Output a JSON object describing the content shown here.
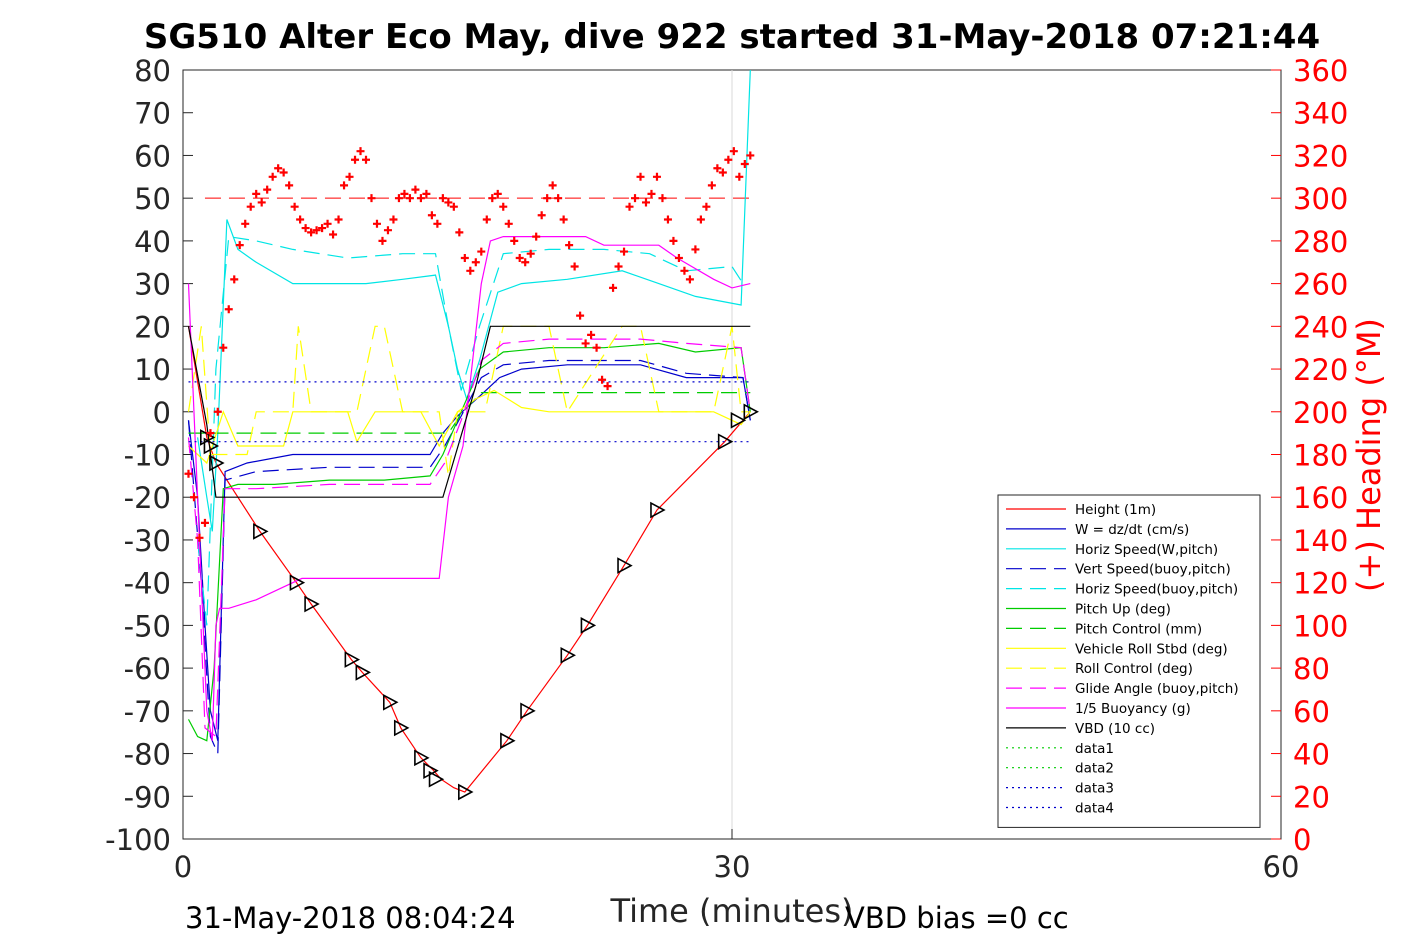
{
  "chart_data": {
    "type": "line",
    "title": "SG510 Alter Eco May, dive 922 started 31-May-2018 07:21:44",
    "xlabel": "Time (minutes)",
    "ylabel_right": "(+) Heading (°M)",
    "footer_left": "31-May-2018 08:04:24",
    "footer_right": "VBD bias =0 cc",
    "xlim": [
      0,
      60
    ],
    "ylim_left": [
      -100,
      80
    ],
    "ylim_right": [
      0,
      360
    ],
    "xticks": [
      0,
      30,
      60
    ],
    "yticks_left": [
      80,
      70,
      60,
      50,
      40,
      30,
      20,
      10,
      0,
      -10,
      -20,
      -30,
      -40,
      -50,
      -60,
      -70,
      -80,
      -90,
      -100
    ],
    "yticks_right": [
      360,
      340,
      320,
      300,
      280,
      260,
      240,
      220,
      200,
      180,
      160,
      140,
      120,
      100,
      80,
      60,
      40,
      20,
      0
    ],
    "legend_position": "lower-right",
    "series": [
      {
        "name": "Height (1m)",
        "color": "#ff0000",
        "style": "solid",
        "x": [
          0.3,
          1.3,
          1.8,
          4.2,
          6.2,
          7.0,
          9.2,
          9.8,
          11.3,
          11.9,
          13.0,
          13.7,
          14.1,
          14.8,
          15.4,
          17.7,
          18.8,
          21.0,
          22.1,
          24.1,
          25.9,
          29.6,
          30.6,
          31.0
        ],
        "y": [
          20,
          -6,
          -12,
          -28,
          -40,
          -45,
          -58,
          -61,
          -68,
          -74,
          -81,
          -84,
          -86,
          -88,
          -89,
          -77,
          -70,
          -57,
          -50,
          -36,
          -23,
          -7,
          -2,
          0
        ]
      },
      {
        "name": "W = dz/dt (cm/s)",
        "color": "#0000cc",
        "style": "solid",
        "x": [
          0.3,
          0.8,
          1.2,
          1.5,
          1.9,
          2.3,
          3.5,
          6.0,
          10.0,
          13.5,
          14.2,
          15.0,
          16.3,
          17.3,
          18.5,
          21.0,
          25.0,
          27.5,
          30.6,
          31.0
        ],
        "y": [
          -2,
          -20,
          -50,
          -70,
          -77,
          -14,
          -12,
          -10,
          -10,
          -10,
          -5,
          -1,
          4,
          8,
          10,
          11,
          11,
          8,
          8,
          -2
        ]
      },
      {
        "name": "Horiz Speed(W,pitch)",
        "color": "#00e5e5",
        "style": "solid",
        "x": [
          0.8,
          1.3,
          1.6,
          1.9,
          2.4,
          3.0,
          4.0,
          6.0,
          8.0,
          10.0,
          12.0,
          13.8,
          14.5,
          15.0,
          15.5,
          16.2,
          17.2,
          18.5,
          21.0,
          24.0,
          26.0,
          28.0,
          30.5,
          31.0
        ],
        "y": [
          -6,
          -20,
          -28,
          -5,
          45,
          38,
          35,
          30,
          30,
          30,
          31,
          32,
          20,
          10,
          3,
          12,
          28,
          30,
          31,
          33,
          30,
          27,
          25,
          80
        ]
      },
      {
        "name": "Vert Speed(buoy,pitch)",
        "color": "#0000cc",
        "style": "dashed",
        "x": [
          0.3,
          1.0,
          1.5,
          1.9,
          2.3,
          4.0,
          8.0,
          13.5,
          14.3,
          15.2,
          16.3,
          17.5,
          20.0,
          25.0,
          27.5,
          30.6,
          31.0
        ],
        "y": [
          -2,
          -40,
          -76,
          -80,
          -16,
          -14,
          -13,
          -13,
          -8,
          -1,
          8,
          11,
          12,
          12,
          9,
          8,
          -2
        ]
      },
      {
        "name": "Horiz Speed(buoy,pitch)",
        "color": "#00e5e5",
        "style": "dashed",
        "x": [
          0.8,
          1.3,
          1.8,
          2.5,
          4.0,
          6.0,
          9.0,
          12.0,
          13.8,
          14.5,
          15.2,
          16.2,
          17.5,
          20.0,
          23.0,
          25.5,
          27.5,
          30.0,
          30.6
        ],
        "y": [
          -30,
          -50,
          10,
          41,
          40,
          38,
          36,
          37,
          37,
          20,
          5,
          20,
          37,
          38,
          38,
          37,
          33,
          34,
          30
        ]
      },
      {
        "name": "Pitch Up (deg)",
        "color": "#00cc00",
        "style": "solid",
        "x": [
          0.3,
          0.8,
          1.3,
          1.7,
          2.2,
          3.0,
          5.0,
          8.0,
          11.0,
          13.5,
          14.2,
          15.0,
          16.2,
          17.5,
          20.0,
          23.0,
          26.0,
          28.0,
          30.5,
          31.0
        ],
        "y": [
          -72,
          -76,
          -77,
          -60,
          -18,
          -17,
          -17,
          -16,
          -16,
          -15,
          -10,
          -2,
          10,
          14,
          15,
          15,
          16,
          14,
          15,
          0
        ]
      },
      {
        "name": "Pitch Control (mm)",
        "color": "#00cc00",
        "style": "dashed",
        "x": [
          0.3,
          13.8,
          14.5,
          15.3,
          16.3,
          31.0
        ],
        "y": [
          -5,
          -5,
          -5,
          0,
          4.5,
          4.5
        ]
      },
      {
        "name": "Vehicle Roll Stbd (deg)",
        "color": "#ffff00",
        "style": "solid",
        "x": [
          0.3,
          1.3,
          2.2,
          3.0,
          4.0,
          5.5,
          6.0,
          7.0,
          9.0,
          9.5,
          10.5,
          11.0,
          12.0,
          13.0,
          14.0,
          15.0,
          16.0,
          17.0,
          18.5,
          20.0,
          22.0,
          24.0,
          25.5,
          27.0,
          29.0,
          30.5,
          31.0
        ],
        "y": [
          -8,
          -12,
          0,
          -8,
          -8,
          -8,
          0,
          0,
          0,
          -7,
          0,
          0,
          0,
          0,
          -8,
          0,
          3,
          5,
          1,
          0,
          0,
          0,
          0,
          0,
          0,
          -3,
          0
        ]
      },
      {
        "name": "Roll Control (deg)",
        "color": "#ffff00",
        "style": "dashed",
        "x": [
          0.3,
          1.0,
          1.5,
          3.5,
          4.0,
          6.0,
          6.3,
          7.0,
          9.5,
          10.5,
          11.0,
          12.0,
          13.0,
          14.0,
          14.5,
          15.0,
          16.5,
          17.5,
          20.0,
          21.0,
          24.0,
          25.0,
          26.0,
          27.0,
          29.0,
          30.0,
          30.5,
          31.0
        ],
        "y": [
          0,
          20,
          -10,
          -10,
          0,
          0,
          20,
          0,
          0,
          20,
          20,
          0,
          0,
          0,
          -15,
          0,
          0,
          20,
          20,
          0,
          20,
          20,
          0,
          0,
          0,
          20,
          0,
          0
        ]
      },
      {
        "name": "Glide Angle (buoy,pitch)",
        "color": "#ff00ff",
        "style": "dashed",
        "x": [
          0.3,
          0.8,
          1.2,
          1.8,
          2.3,
          4.0,
          8.0,
          13.5,
          14.3,
          15.2,
          16.3,
          17.5,
          20.0,
          25.0,
          27.5,
          30.5,
          31.0
        ],
        "y": [
          -6,
          -30,
          -74,
          -76,
          -18,
          -18,
          -17,
          -17,
          -12,
          -2,
          12,
          16,
          17,
          17,
          16,
          15,
          0
        ]
      },
      {
        "name": "1/5 Buoyancy (g)",
        "color": "#ff00ff",
        "style": "solid",
        "x": [
          0.3,
          0.8,
          1.3,
          1.6,
          1.8,
          2.0,
          2.5,
          4.0,
          5.5,
          6.5,
          8.0,
          14.0,
          14.5,
          15.3,
          16.3,
          16.8,
          17.5,
          22.0,
          23.0,
          26.0,
          27.0,
          29.0,
          30.0,
          31.0
        ],
        "y": [
          30,
          -20,
          -70,
          -77,
          -50,
          -46,
          -46,
          -44,
          -41,
          -39,
          -39,
          -39,
          -20,
          -8,
          30,
          40,
          41,
          41,
          39,
          39,
          36,
          31,
          29,
          30
        ]
      },
      {
        "name": "VBD (10 cc)",
        "color": "#000000",
        "style": "solid",
        "x": [
          0.3,
          1.3,
          1.8,
          13.9,
          14.2,
          16.0,
          16.8,
          31.0
        ],
        "y": [
          20,
          -3,
          -20,
          -20,
          -20,
          6,
          20,
          20
        ]
      },
      {
        "name": "data1",
        "color": "#00cc00",
        "style": "dotted",
        "x": [],
        "y": []
      },
      {
        "name": "data2",
        "color": "#00cc00",
        "style": "dotted",
        "x": [],
        "y": []
      },
      {
        "name": "data3",
        "color": "#0000cc",
        "style": "dotted",
        "x": [
          0.3,
          31.0
        ],
        "y": [
          7,
          7
        ]
      },
      {
        "name": "data4",
        "color": "#0000cc",
        "style": "dotted",
        "x": [
          0.3,
          31.0
        ],
        "y": [
          -7,
          -7
        ]
      }
    ],
    "reference_lines": [
      {
        "axis": "right",
        "value": 300,
        "color": "#ff0000",
        "style": "dashed",
        "x_range": [
          1.2,
          31.0
        ]
      }
    ],
    "heading_points": {
      "color": "#ff0000",
      "marker": "+",
      "x": [
        0.3,
        0.6,
        0.9,
        1.2,
        1.5,
        1.9,
        2.2,
        2.5,
        2.8,
        3.1,
        3.4,
        3.7,
        4.0,
        4.3,
        4.6,
        4.9,
        5.2,
        5.5,
        5.8,
        6.1,
        6.4,
        6.7,
        7.0,
        7.3,
        7.6,
        7.9,
        8.2,
        8.5,
        8.8,
        9.1,
        9.4,
        9.7,
        10.0,
        10.3,
        10.6,
        10.9,
        11.2,
        11.5,
        11.8,
        12.1,
        12.4,
        12.7,
        13.0,
        13.3,
        13.6,
        13.9,
        14.2,
        14.5,
        14.8,
        15.1,
        15.4,
        15.7,
        16.0,
        16.3,
        16.6,
        16.9,
        17.2,
        17.5,
        17.8,
        18.1,
        18.4,
        18.7,
        19.0,
        19.3,
        19.6,
        19.9,
        20.2,
        20.5,
        20.8,
        21.1,
        21.4,
        21.7,
        22.0,
        22.3,
        22.6,
        22.9,
        23.2,
        23.5,
        23.8,
        24.1,
        24.4,
        24.7,
        25.0,
        25.3,
        25.6,
        25.9,
        26.2,
        26.5,
        26.8,
        27.1,
        27.4,
        27.7,
        28.0,
        28.3,
        28.6,
        28.9,
        29.2,
        29.5,
        29.8,
        30.1,
        30.4,
        30.7,
        31.0
      ],
      "y": [
        171,
        160,
        141,
        148,
        190,
        200,
        230,
        248,
        262,
        278,
        288,
        296,
        302,
        298,
        304,
        310,
        314,
        312,
        306,
        296,
        290,
        286,
        284,
        285,
        286,
        288,
        283,
        290,
        306,
        310,
        318,
        322,
        318,
        300,
        288,
        280,
        285,
        290,
        300,
        302,
        300,
        304,
        300,
        302,
        292,
        288,
        300,
        298,
        296,
        284,
        272,
        266,
        270,
        275,
        290,
        300,
        302,
        296,
        288,
        280,
        272,
        270,
        274,
        282,
        292,
        300,
        306,
        300,
        290,
        278,
        268,
        245,
        232,
        236,
        230,
        215,
        212,
        258,
        268,
        275,
        296,
        300,
        310,
        298,
        302,
        310,
        300,
        290,
        280,
        272,
        266,
        262,
        276,
        290,
        296,
        306,
        314,
        312,
        318,
        322,
        310,
        316,
        320
      ]
    },
    "triangle_markers": {
      "color": "#000000",
      "marker": "triangle",
      "x": [
        1.3,
        1.5,
        1.8,
        4.2,
        6.2,
        7.0,
        9.2,
        9.8,
        11.3,
        11.9,
        13.0,
        13.5,
        13.8,
        15.4,
        17.7,
        18.8,
        21.0,
        22.1,
        24.1,
        25.9,
        29.6,
        30.3,
        31.0
      ],
      "y": [
        -6,
        -8,
        -12,
        -28,
        -40,
        -45,
        -58,
        -61,
        -68,
        -74,
        -81,
        -84,
        -86,
        -89,
        -77,
        -70,
        -57,
        -50,
        -36,
        -23,
        -7,
        -2,
        0
      ]
    }
  }
}
